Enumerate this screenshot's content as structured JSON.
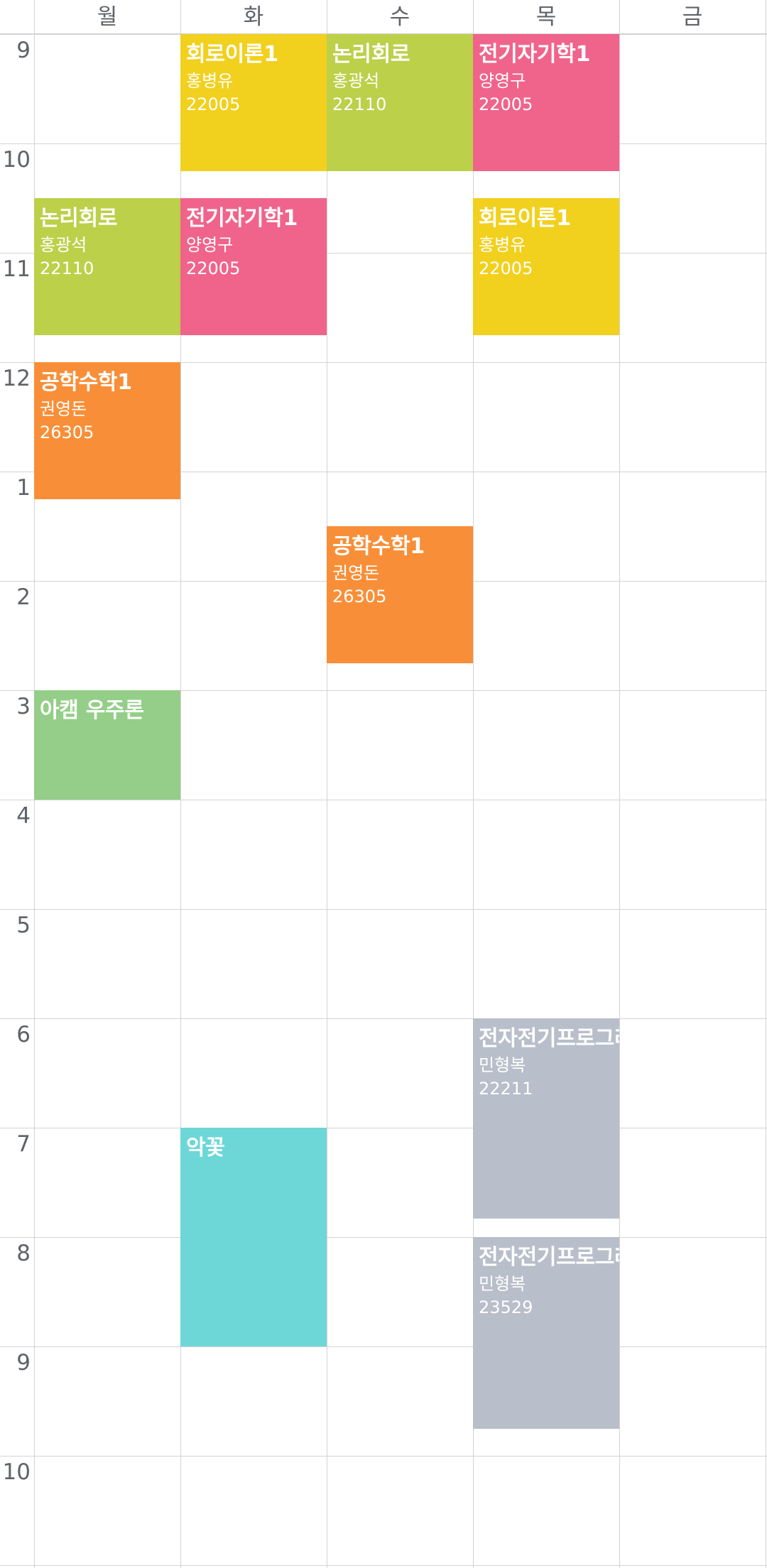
{
  "days": [
    "월",
    "화",
    "수",
    "목",
    "금"
  ],
  "times": [
    "9",
    "10",
    "11",
    "12",
    "1",
    "2",
    "3",
    "4",
    "5",
    "6",
    "7",
    "8",
    "9",
    "10"
  ],
  "colors": {
    "yellow": "#F2D01E",
    "lime": "#BCD04A",
    "pink": "#F0648C",
    "orange": "#F88F38",
    "green": "#94CE88",
    "cyan": "#6DD7D7",
    "gray": "#B8BFCA",
    "grid": "#D3D3D3",
    "text": "#5F6368"
  },
  "events": [
    {
      "id": "e1",
      "day": "화",
      "title": "회로이론1",
      "prof": "홍병유",
      "room": "22005",
      "start": "9:00",
      "end": "10:15",
      "color": "yellow"
    },
    {
      "id": "e2",
      "day": "수",
      "title": "논리회로",
      "prof": "홍광석",
      "room": "22110",
      "start": "9:00",
      "end": "10:15",
      "color": "lime"
    },
    {
      "id": "e3",
      "day": "목",
      "title": "전기자기학1",
      "prof": "양영구",
      "room": "22005",
      "start": "9:00",
      "end": "10:15",
      "color": "pink"
    },
    {
      "id": "e4",
      "day": "월",
      "title": "논리회로",
      "prof": "홍광석",
      "room": "22110",
      "start": "10:30",
      "end": "11:45",
      "color": "lime"
    },
    {
      "id": "e5",
      "day": "화",
      "title": "전기자기학1",
      "prof": "양영구",
      "room": "22005",
      "start": "10:30",
      "end": "11:45",
      "color": "pink"
    },
    {
      "id": "e6",
      "day": "목",
      "title": "회로이론1",
      "prof": "홍병유",
      "room": "22005",
      "start": "10:30",
      "end": "11:45",
      "color": "yellow"
    },
    {
      "id": "e7",
      "day": "월",
      "title": "공학수학1",
      "prof": "권영돈",
      "room": "26305",
      "start": "12:00",
      "end": "13:15",
      "color": "orange"
    },
    {
      "id": "e8",
      "day": "수",
      "title": "공학수학1",
      "prof": "권영돈",
      "room": "26305",
      "start": "13:30",
      "end": "14:45",
      "color": "orange"
    },
    {
      "id": "e9",
      "day": "월",
      "title": "아캠 우주론",
      "prof": "",
      "room": "",
      "start": "15:00",
      "end": "16:00",
      "color": "green"
    },
    {
      "id": "e10",
      "day": "목",
      "title": "전자전기프로그래밍실습",
      "prof": "민형복",
      "room": "22211",
      "start": "18:00",
      "end": "19:50",
      "color": "gray"
    },
    {
      "id": "e11",
      "day": "화",
      "title": "악꽃",
      "prof": "",
      "room": "",
      "start": "19:00",
      "end": "21:00",
      "color": "cyan"
    },
    {
      "id": "e12",
      "day": "목",
      "title": "전자전기프로그래밍실습",
      "prof": "민형복",
      "room": "23529",
      "start": "20:00",
      "end": "21:45",
      "color": "gray"
    }
  ]
}
